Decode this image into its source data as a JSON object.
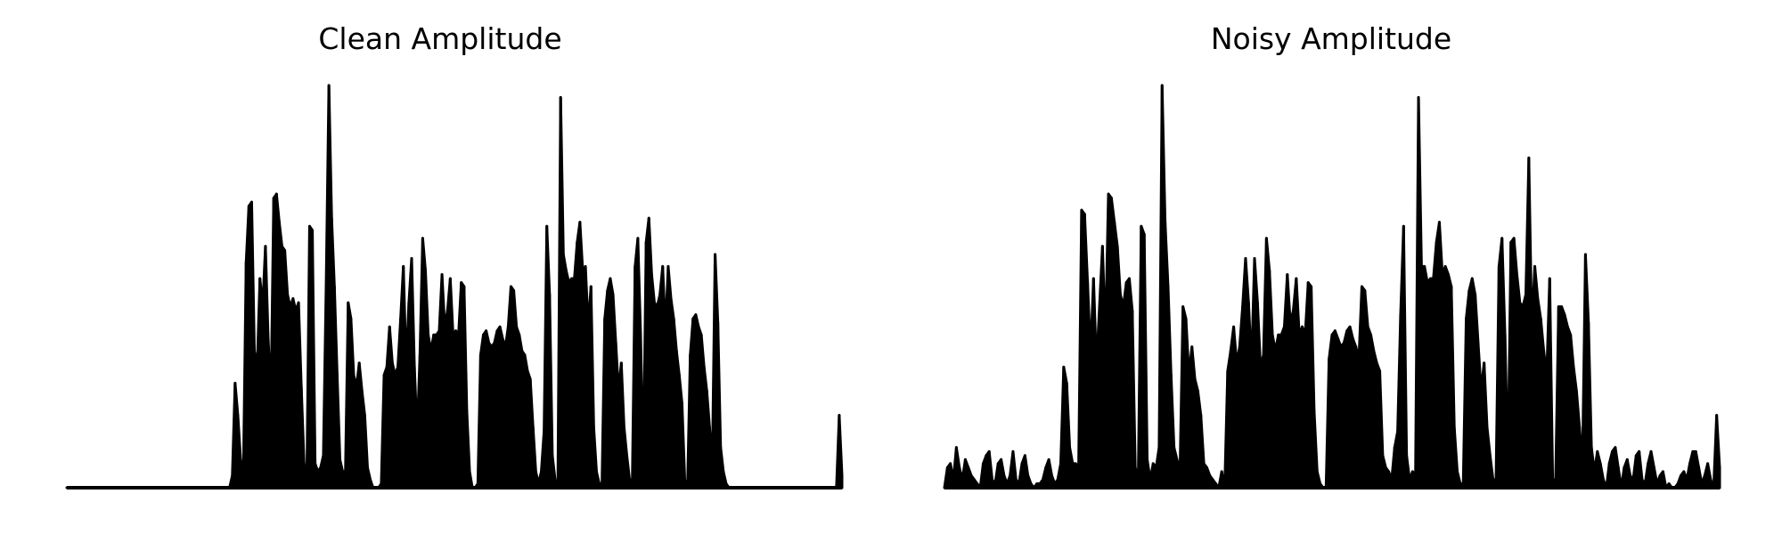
{
  "figure": {
    "background": "#ffffff",
    "line_color": "#000000"
  },
  "chart_data": [
    {
      "type": "area",
      "title": "Clean Amplitude",
      "xlabel": "",
      "ylabel": "",
      "axes_visible": false,
      "ylim": [
        0,
        1.0
      ],
      "envelope_note": "approximate amplitude envelope (normalized to peak = 1.0) sampled across the signal from start to end",
      "values": [
        0,
        0,
        0,
        0,
        0,
        0,
        0,
        0,
        0,
        0,
        0,
        0,
        0,
        0,
        0,
        0,
        0,
        0,
        0,
        0,
        0,
        0,
        0,
        0,
        0,
        0,
        0,
        0,
        0,
        0,
        0,
        0,
        0,
        0,
        0,
        0,
        0,
        0,
        0,
        0,
        0,
        0,
        0,
        0,
        0,
        0,
        0,
        0,
        0,
        0,
        0,
        0,
        0,
        0,
        0,
        0,
        0,
        0,
        0,
        0,
        0.03,
        0.26,
        0.18,
        0.07,
        0.03,
        0.56,
        0.7,
        0.71,
        0.34,
        0.3,
        0.52,
        0.45,
        0.6,
        0.37,
        0.22,
        0.72,
        0.73,
        0.66,
        0.6,
        0.59,
        0.48,
        0.45,
        0.47,
        0.44,
        0.46,
        0.25,
        0.06,
        0.02,
        0.65,
        0.64,
        0.06,
        0.04,
        0.05,
        0.08,
        0.5,
        1.0,
        0.67,
        0.5,
        0.28,
        0.07,
        0.04,
        0.04,
        0.46,
        0.42,
        0.28,
        0.25,
        0.31,
        0.24,
        0.18,
        0.05,
        0.02,
        0.0,
        0.0,
        0.0,
        0.01,
        0.28,
        0.3,
        0.4,
        0.31,
        0.28,
        0.3,
        0.42,
        0.55,
        0.3,
        0.46,
        0.57,
        0.3,
        0.13,
        0.33,
        0.62,
        0.54,
        0.38,
        0.34,
        0.38,
        0.38,
        0.39,
        0.53,
        0.4,
        0.44,
        0.52,
        0.38,
        0.39,
        0.38,
        0.51,
        0.5,
        0.19,
        0.04,
        0.0,
        0.0,
        0.01,
        0.33,
        0.38,
        0.39,
        0.36,
        0.35,
        0.36,
        0.39,
        0.4,
        0.37,
        0.35,
        0.4,
        0.5,
        0.49,
        0.4,
        0.38,
        0.34,
        0.33,
        0.29,
        0.27,
        0.15,
        0.04,
        0.01,
        0.04,
        0.14,
        0.65,
        0.48,
        0.08,
        0.02,
        0.0,
        0.97,
        0.58,
        0.54,
        0.51,
        0.52,
        0.52,
        0.61,
        0.66,
        0.54,
        0.55,
        0.4,
        0.5,
        0.15,
        0.04,
        0.01,
        0.01,
        0.42,
        0.49,
        0.52,
        0.48,
        0.36,
        0.24,
        0.31,
        0.15,
        0.08,
        0.02,
        0.02,
        0.55,
        0.62,
        0.38,
        0.05,
        0.61,
        0.67,
        0.53,
        0.46,
        0.45,
        0.48,
        0.55,
        0.39,
        0.55,
        0.47,
        0.42,
        0.34,
        0.28,
        0.21,
        0.02,
        0.0,
        0.33,
        0.42,
        0.43,
        0.4,
        0.38,
        0.3,
        0.24,
        0.15,
        0.06,
        0.58,
        0.41,
        0.1,
        0.04,
        0.01,
        0.0,
        0.0,
        0.0,
        0.0,
        0.0,
        0.0,
        0.0,
        0.0,
        0.0,
        0.0,
        0.0,
        0.0,
        0.0,
        0.0,
        0.0,
        0.0,
        0.0,
        0.0,
        0.0,
        0.0,
        0.0,
        0.0,
        0.0,
        0.0,
        0.0,
        0.0,
        0.0,
        0.0,
        0.0,
        0.0,
        0.0,
        0.0,
        0.0,
        0.0,
        0.0,
        0.0,
        0.0,
        0.0,
        0.0,
        0.0,
        0.18,
        0.03
      ]
    },
    {
      "type": "area",
      "title": "Noisy Amplitude",
      "xlabel": "",
      "ylabel": "",
      "axes_visible": false,
      "ylim": [
        0,
        1.0
      ],
      "envelope_note": "approximate amplitude envelope (normalized to peak = 1.0) sampled across the signal from start to end",
      "values": [
        0,
        0.05,
        0.06,
        0.02,
        0.1,
        0.05,
        0.02,
        0.07,
        0.05,
        0.03,
        0.02,
        0.01,
        0.0,
        0.06,
        0.08,
        0.09,
        0.02,
        0.01,
        0.06,
        0.07,
        0.03,
        0.01,
        0.03,
        0.09,
        0.02,
        0.01,
        0.06,
        0.08,
        0.03,
        0.01,
        0.0,
        0.01,
        0.01,
        0.02,
        0.05,
        0.07,
        0.03,
        0.01,
        0.02,
        0.06,
        0.3,
        0.26,
        0.1,
        0.06,
        0.06,
        0.05,
        0.69,
        0.68,
        0.51,
        0.33,
        0.52,
        0.3,
        0.45,
        0.6,
        0.37,
        0.73,
        0.72,
        0.66,
        0.6,
        0.48,
        0.45,
        0.51,
        0.52,
        0.44,
        0.05,
        0.02,
        0.65,
        0.63,
        0.07,
        0.02,
        0.06,
        0.05,
        0.1,
        1.0,
        0.66,
        0.5,
        0.28,
        0.1,
        0.07,
        0.04,
        0.45,
        0.42,
        0.28,
        0.35,
        0.27,
        0.24,
        0.18,
        0.06,
        0.05,
        0.03,
        0.02,
        0.01,
        0.0,
        0.04,
        0.0,
        0.29,
        0.34,
        0.4,
        0.31,
        0.35,
        0.45,
        0.57,
        0.46,
        0.3,
        0.57,
        0.46,
        0.3,
        0.33,
        0.62,
        0.54,
        0.38,
        0.34,
        0.38,
        0.38,
        0.4,
        0.53,
        0.41,
        0.44,
        0.52,
        0.38,
        0.4,
        0.38,
        0.51,
        0.5,
        0.19,
        0.04,
        0.01,
        0.0,
        0.0,
        0.32,
        0.38,
        0.39,
        0.37,
        0.35,
        0.36,
        0.39,
        0.4,
        0.37,
        0.35,
        0.32,
        0.5,
        0.49,
        0.4,
        0.38,
        0.34,
        0.31,
        0.29,
        0.08,
        0.05,
        0.04,
        0.02,
        0.1,
        0.14,
        0.43,
        0.65,
        0.08,
        0.02,
        0.04,
        0.03,
        0.97,
        0.55,
        0.55,
        0.51,
        0.52,
        0.52,
        0.61,
        0.66,
        0.53,
        0.55,
        0.53,
        0.5,
        0.15,
        0.04,
        0.01,
        0.01,
        0.42,
        0.49,
        0.52,
        0.48,
        0.36,
        0.24,
        0.31,
        0.15,
        0.08,
        0.02,
        0.02,
        0.55,
        0.62,
        0.38,
        0.05,
        0.61,
        0.62,
        0.53,
        0.46,
        0.45,
        0.48,
        0.82,
        0.39,
        0.55,
        0.47,
        0.42,
        0.34,
        0.28,
        0.52,
        0.02,
        0.02,
        0.45,
        0.45,
        0.43,
        0.4,
        0.38,
        0.3,
        0.24,
        0.15,
        0.06,
        0.58,
        0.41,
        0.1,
        0.04,
        0.09,
        0.06,
        0.02,
        0.0,
        0.06,
        0.09,
        0.1,
        0.05,
        0.0,
        0.05,
        0.07,
        0.03,
        0.02,
        0.08,
        0.09,
        0.02,
        0.01,
        0.06,
        0.09,
        0.05,
        0.01,
        0.03,
        0.04,
        0.0,
        0.01,
        0.0,
        0.0,
        0.01,
        0.03,
        0.04,
        0.02,
        0.06,
        0.09,
        0.09,
        0.05,
        0.01,
        0.03,
        0.06,
        0.02,
        0.0,
        0.18,
        0.05
      ]
    }
  ]
}
